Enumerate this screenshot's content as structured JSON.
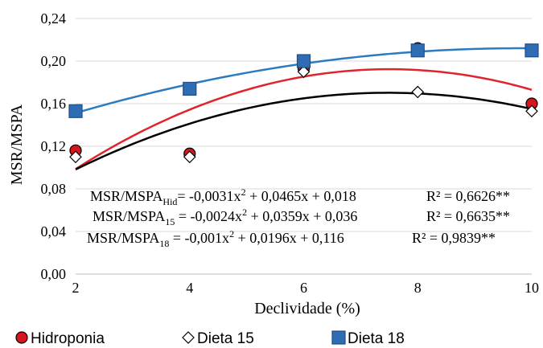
{
  "chart_data": {
    "type": "scatter",
    "xlabel": "Declividade (%)",
    "ylabel": "MSR/MSPA",
    "x": [
      2,
      4,
      6,
      8,
      10
    ],
    "xlim": [
      2,
      10
    ],
    "ylim": [
      0,
      0.24
    ],
    "x_ticks": [
      "2",
      "4",
      "6",
      "8",
      "10"
    ],
    "y_ticks": [
      "0,00",
      "0,04",
      "0,08",
      "0,12",
      "0,16",
      "0,20",
      "0,24"
    ],
    "grid": true,
    "legend_position": "bottom",
    "series": [
      {
        "name": "Hidroponia",
        "marker": "circle",
        "color": "#d9141c",
        "trend_color": "#e0242b",
        "values": [
          0.116,
          0.113,
          0.193,
          0.212,
          0.16
        ],
        "fit": {
          "a": -0.0031,
          "b": 0.0465,
          "c": 0.018
        }
      },
      {
        "name": "Dieta 15",
        "marker": "diamond",
        "color": "#ffffff",
        "trend_color": "#000000",
        "values": [
          0.11,
          0.11,
          0.19,
          0.171,
          0.153
        ],
        "fit": {
          "a": -0.0024,
          "b": 0.0359,
          "c": 0.036
        }
      },
      {
        "name": "Dieta 18",
        "marker": "square",
        "color": "#2e6db4",
        "trend_color": "#2a7bc0",
        "values": [
          0.153,
          0.174,
          0.2,
          0.21,
          0.21
        ],
        "fit": {
          "a": -0.001,
          "b": 0.0196,
          "c": 0.116
        }
      }
    ],
    "annotations": [
      {
        "lhs": "MSR/MSPA",
        "sub": "Hid",
        "rhs": "= -0,0031x",
        "rhs2": " + 0,0465x + 0,018",
        "r2": "R² = 0,6626**"
      },
      {
        "lhs": "MSR/MSPA",
        "sub": "15",
        "rhs": " = -0,0024x",
        "rhs2": " + 0,0359x + 0,036",
        "r2": "R² = 0,6635**"
      },
      {
        "lhs": "MSR/MSPA",
        "sub": "18",
        "rhs": " = -0,001x",
        "rhs2": " + 0,0196x + 0,116",
        "r2": "R² = 0,9839**"
      }
    ]
  }
}
